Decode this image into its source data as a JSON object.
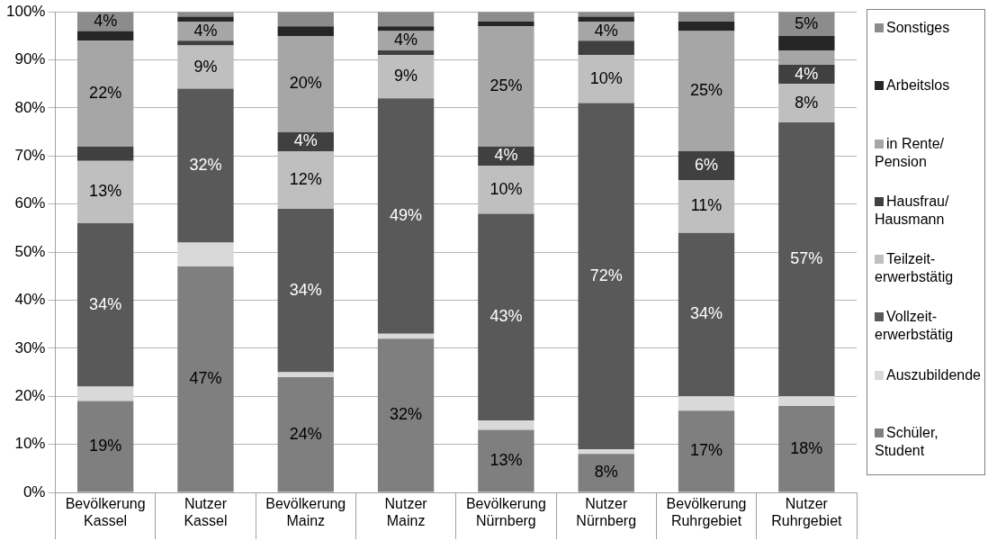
{
  "chart_data": {
    "type": "bar",
    "stacked": true,
    "categories": [
      "Bevölkerung Kassel",
      "Nutzer Kassel",
      "Bevölkerung Mainz",
      "Nutzer Mainz",
      "Bevölkerung Nürnberg",
      "Nutzer Nürnberg",
      "Bevölkerung Ruhrgebiet",
      "Nutzer Ruhrgebiet"
    ],
    "ylim": [
      0,
      100
    ],
    "yticks": [
      {
        "value": 0,
        "label": "0%"
      },
      {
        "value": 10,
        "label": "10%"
      },
      {
        "value": 20,
        "label": "20%"
      },
      {
        "value": 30,
        "label": "30%"
      },
      {
        "value": 40,
        "label": "40%"
      },
      {
        "value": 50,
        "label": "50%"
      },
      {
        "value": 60,
        "label": "60%"
      },
      {
        "value": 70,
        "label": "70%"
      },
      {
        "value": 80,
        "label": "80%"
      },
      {
        "value": 90,
        "label": "90%"
      },
      {
        "value": 100,
        "label": "100%"
      }
    ],
    "grid": "y",
    "legend": "right",
    "series": [
      {
        "name": "Schüler, Student",
        "color": "#7f7f7f",
        "values": [
          19,
          47,
          24,
          32,
          13,
          8,
          17,
          18
        ],
        "value_labels": [
          "19%",
          "47%",
          "24%",
          "32%",
          "13%",
          "8%",
          "17%",
          "18%"
        ]
      },
      {
        "name": "Auszubildende",
        "color": "#d9d9d9",
        "values": [
          3,
          5,
          1,
          1,
          2,
          1,
          3,
          2
        ],
        "value_labels": [
          null,
          null,
          null,
          null,
          null,
          null,
          null,
          null
        ]
      },
      {
        "name": "Vollzeit-erwerbstätig",
        "color": "#595959",
        "values": [
          34,
          32,
          34,
          49,
          43,
          72,
          34,
          57
        ],
        "value_labels": [
          "34%",
          "32%",
          "34%",
          "49%",
          "43%",
          "72%",
          "34%",
          "57%"
        ]
      },
      {
        "name": "Teilzeit-erwerbstätig",
        "color": "#bfbfbf",
        "values": [
          13,
          9,
          12,
          9,
          10,
          10,
          11,
          8
        ],
        "value_labels": [
          "13%",
          "9%",
          "12%",
          "9%",
          "10%",
          "10%",
          "11%",
          "8%"
        ]
      },
      {
        "name": "Hausfrau/Hausmann",
        "color": "#404040",
        "values": [
          3,
          1,
          4,
          1,
          4,
          3,
          6,
          4
        ],
        "value_labels": [
          null,
          null,
          "4%",
          null,
          "4%",
          null,
          "6%",
          "4%"
        ]
      },
      {
        "name": "in Rente/Pension",
        "color": "#a6a6a6",
        "values": [
          22,
          4,
          20,
          4,
          25,
          4,
          25,
          3
        ],
        "value_labels": [
          "22%",
          "4%",
          "20%",
          "4%",
          "25%",
          "4%",
          "25%",
          null
        ]
      },
      {
        "name": "Arbeitslos",
        "color": "#262626",
        "values": [
          2,
          1,
          2,
          1,
          1,
          1,
          2,
          3
        ],
        "value_labels": [
          null,
          null,
          null,
          null,
          null,
          null,
          null,
          null
        ]
      },
      {
        "name": "Sonstiges",
        "color": "#8c8c8c",
        "values": [
          4,
          1,
          3,
          3,
          2,
          1,
          2,
          5
        ],
        "value_labels": [
          "4%",
          null,
          null,
          null,
          null,
          null,
          null,
          "5%"
        ]
      }
    ]
  }
}
